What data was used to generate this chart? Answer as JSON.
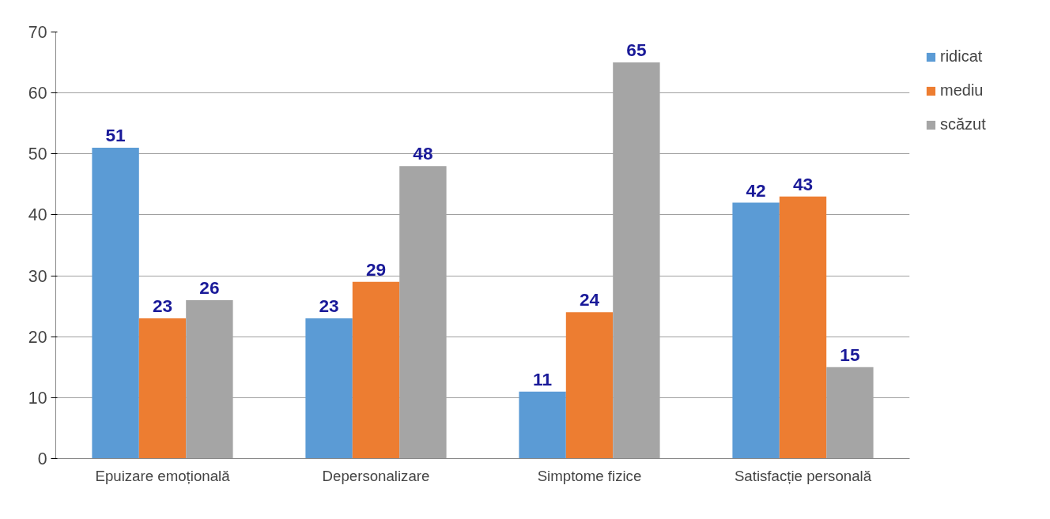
{
  "chart_data": {
    "type": "bar",
    "categories": [
      "Epuizare emoțională",
      "Depersonalizare",
      "Simptome fizice",
      "Satisfacție personală"
    ],
    "series": [
      {
        "name": "ridicat",
        "color": "#5b9bd5",
        "values": [
          51,
          23,
          11,
          42
        ]
      },
      {
        "name": "mediu",
        "color": "#ed7d31",
        "values": [
          23,
          29,
          24,
          43
        ]
      },
      {
        "name": "scăzut",
        "color": "#a5a5a5",
        "values": [
          26,
          48,
          65,
          15
        ]
      }
    ],
    "ylim": [
      0,
      70
    ],
    "yticks": [
      0,
      10,
      20,
      30,
      40,
      50,
      60,
      70
    ],
    "grid": "y",
    "legend": "right",
    "data_labels": true
  }
}
